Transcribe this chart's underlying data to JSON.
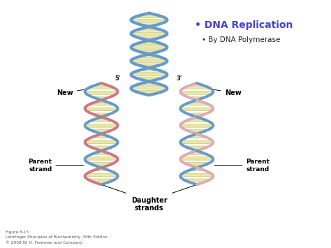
{
  "background_color": "#ffffff",
  "dna_title": "DNA Replication",
  "dna_subtitle": "By DNA Polymerase",
  "title_color": "#4444cc",
  "subtitle_color": "#222222",
  "strand_blue": "#6699cc",
  "strand_pink": "#cc7788",
  "strand_light_pink": "#ddaabb",
  "rung_color": "#e8e8a0",
  "rung_outline": "#bbbb77",
  "label_color": "#000000",
  "label_new_left": "New",
  "label_new_right": "New",
  "label_parent_left": "Parent\nstrand",
  "label_parent_right": "Parent\nstrand",
  "label_daughter": "Daughter\nstrands",
  "label_five": "5'",
  "label_three": "3'",
  "figure_caption": "Figure 8-15\nLehninger Principles of Biochemistry, Fifth Edition\n© 2008 W. H. Freeman and Company",
  "figsize": [
    4.74,
    3.55
  ],
  "dpi": 100
}
